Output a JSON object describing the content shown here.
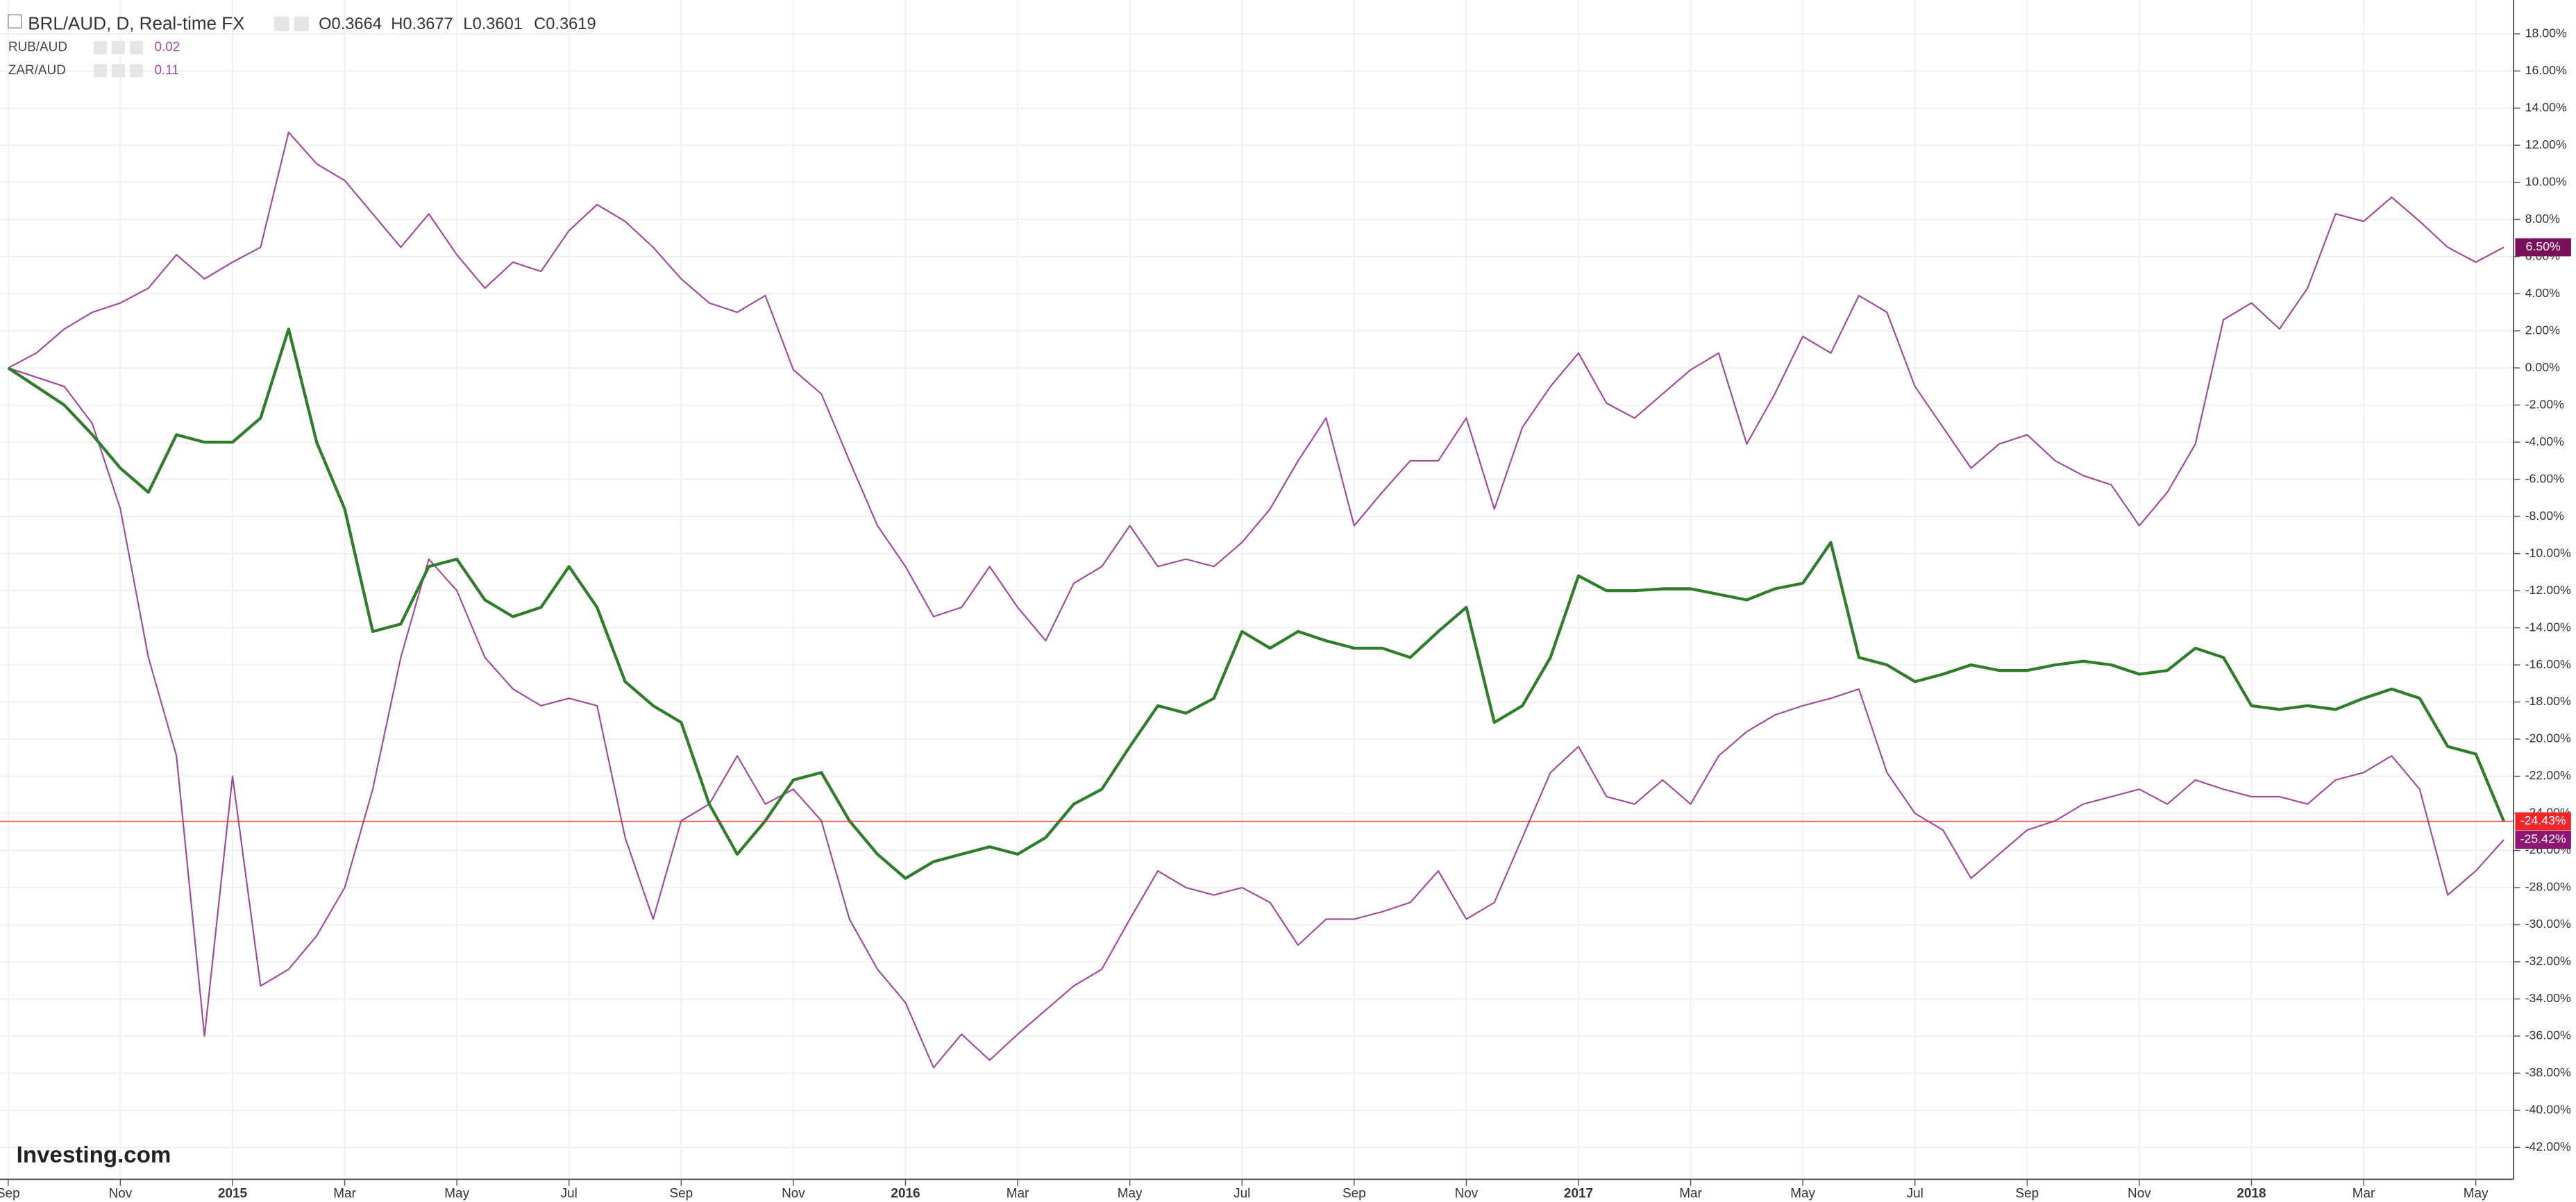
{
  "chart_data": {
    "type": "line",
    "title": "BRL/AUD, D, Real-time FX",
    "ohlc": [
      "O0.3664",
      "H0.3677",
      "L0.3601",
      "C0.3619"
    ],
    "logo": "Investing.com",
    "categories": [
      "Sep",
      null,
      null,
      null,
      "Nov",
      null,
      null,
      null,
      "2015",
      null,
      null,
      null,
      "Mar",
      null,
      null,
      null,
      "May",
      null,
      null,
      null,
      "Jul",
      null,
      null,
      null,
      "Sep",
      null,
      null,
      null,
      "Nov",
      null,
      null,
      null,
      "2016",
      null,
      null,
      null,
      "Mar",
      null,
      null,
      null,
      "May",
      null,
      null,
      null,
      "Jul",
      null,
      null,
      null,
      "Sep",
      null,
      null,
      null,
      "Nov",
      null,
      null,
      null,
      "2017",
      null,
      null,
      null,
      "Mar",
      null,
      null,
      null,
      "May",
      null,
      null,
      null,
      "Jul",
      null,
      null,
      null,
      "Sep",
      null,
      null,
      null,
      "Nov",
      null,
      null,
      null,
      "2018",
      null,
      null,
      null,
      "Mar",
      null,
      null,
      null,
      "May",
      null
    ],
    "series": [
      {
        "name": "BRL/AUD",
        "color": "#2f7d2a",
        "last_label": "-24.43%",
        "label_color": "#f0262a",
        "values": [
          0,
          -1,
          -2,
          -3.6,
          -5.4,
          -6.7,
          -3.6,
          -4,
          -4,
          -2.7,
          2.1,
          -4,
          -7.6,
          -14.2,
          -13.8,
          -10.7,
          -10.3,
          -12.5,
          -13.4,
          -12.9,
          -10.7,
          -12.9,
          -16.9,
          -18.2,
          -19.1,
          -23.5,
          -26.2,
          -24.4,
          -22.2,
          -21.8,
          -24.4,
          -26.2,
          -27.5,
          -26.6,
          -26.2,
          -25.8,
          -26.2,
          -25.3,
          -23.5,
          -22.7,
          -20.4,
          -18.2,
          -18.6,
          -17.8,
          -14.2,
          -15.1,
          -14.2,
          -14.7,
          -15.1,
          -15.1,
          -15.6,
          -14.2,
          -12.9,
          -19.1,
          -18.2,
          -15.6,
          -11.2,
          -12,
          -12,
          -11.9,
          -11.9,
          -12.2,
          -12.5,
          -11.9,
          -11.6,
          -9.4,
          -15.6,
          -16,
          -16.9,
          -16.5,
          -16,
          -16.3,
          -16.3,
          -16,
          -15.8,
          -16,
          -16.5,
          -16.3,
          -15.1,
          -15.6,
          -18.2,
          -18.4,
          -18.2,
          -18.4,
          -17.8,
          -17.3,
          -17.8,
          -20.4,
          -20.8,
          -24.43
        ]
      },
      {
        "name": "RUB/AUD",
        "color": "#a0489a",
        "legend_value": "0.02",
        "last_label": "-25.42%",
        "label_color": "#8c1670",
        "values": [
          0,
          -0.5,
          -1,
          -3,
          -7.6,
          -15.6,
          -20.9,
          -36,
          -22,
          -33.3,
          -32.4,
          -30.6,
          -28,
          -22.7,
          -15.6,
          -10.3,
          -12,
          -15.6,
          -17.3,
          -18.2,
          -17.8,
          -18.2,
          -25.3,
          -29.7,
          -24.4,
          -23.5,
          -20.9,
          -23.5,
          -22.7,
          -24.4,
          -29.7,
          -32.4,
          -34.2,
          -37.7,
          -35.9,
          -37.3,
          -35.9,
          -34.6,
          -33.3,
          -32.4,
          -29.7,
          -27.1,
          -28,
          -28.4,
          -28,
          -28.8,
          -31.1,
          -29.7,
          -29.7,
          -29.3,
          -28.8,
          -27.1,
          -29.7,
          -28.8,
          -25.3,
          -21.8,
          -20.4,
          -23.1,
          -23.5,
          -22.2,
          -23.5,
          -20.9,
          -19.6,
          -18.7,
          -18.2,
          -17.8,
          -17.3,
          -21.8,
          -24,
          -24.9,
          -27.5,
          -26.2,
          -24.9,
          -24.4,
          -23.5,
          -23.1,
          -22.7,
          -23.5,
          -22.2,
          -22.7,
          -23.1,
          -23.1,
          -23.5,
          -22.2,
          -21.8,
          -20.9,
          -22.7,
          -28.4,
          -27.1,
          -25.42
        ]
      },
      {
        "name": "ZAR/AUD",
        "color": "#a0489a",
        "legend_value": "0.11",
        "last_label": "6.50%",
        "label_color": "#7a0f5a",
        "values": [
          0,
          0.8,
          2.1,
          3,
          3.5,
          4.3,
          6.1,
          4.8,
          5.7,
          6.5,
          12.7,
          11,
          10.1,
          8.3,
          6.5,
          8.3,
          6.1,
          4.3,
          5.7,
          5.2,
          7.4,
          8.8,
          7.9,
          6.5,
          4.8,
          3.5,
          3,
          3.9,
          -0.1,
          -1.4,
          -5,
          -8.5,
          -10.7,
          -13.4,
          -12.9,
          -10.7,
          -12.9,
          -14.7,
          -11.6,
          -10.7,
          -8.5,
          -10.7,
          -10.3,
          -10.7,
          -9.4,
          -7.6,
          -5,
          -2.7,
          -8.5,
          -6.7,
          -5,
          -5,
          -2.7,
          -7.6,
          -3.2,
          -1,
          0.8,
          -1.9,
          -2.7,
          -1.4,
          -0.1,
          0.8,
          -4.1,
          -1.4,
          1.7,
          0.8,
          3.9,
          3,
          -1,
          -3.2,
          -5.4,
          -4.1,
          -3.6,
          -5,
          -5.8,
          -6.3,
          -8.5,
          -6.7,
          -4.1,
          2.6,
          3.5,
          2.1,
          4.3,
          8.3,
          7.9,
          9.2,
          7.9,
          6.5,
          5.7,
          6.5
        ]
      }
    ],
    "ylim": [
      -43.7,
      19.4
    ],
    "yticks": [
      {
        "value": -42,
        "label": "-42.00%"
      },
      {
        "value": -40,
        "label": "-40.00%"
      },
      {
        "value": -38,
        "label": "-38.00%"
      },
      {
        "value": -36,
        "label": "-36.00%"
      },
      {
        "value": -34,
        "label": "-34.00%"
      },
      {
        "value": -32,
        "label": "-32.00%"
      },
      {
        "value": -30,
        "label": "-30.00%"
      },
      {
        "value": -28,
        "label": "-28.00%"
      },
      {
        "value": -26,
        "label": "-26.00%"
      },
      {
        "value": -24,
        "label": "-24.00%"
      },
      {
        "value": -22,
        "label": "-22.00%"
      },
      {
        "value": -20,
        "label": "-20.00%"
      },
      {
        "value": -18,
        "label": "-18.00%"
      },
      {
        "value": -16,
        "label": "-16.00%"
      },
      {
        "value": -14,
        "label": "-14.00%"
      },
      {
        "value": -12,
        "label": "-12.00%"
      },
      {
        "value": -10,
        "label": "-10.00%"
      },
      {
        "value": -8,
        "label": "-8.00%"
      },
      {
        "value": -6,
        "label": "-6.00%"
      },
      {
        "value": -4,
        "label": "-4.00%"
      },
      {
        "value": -2,
        "label": "-2.00%"
      },
      {
        "value": 0,
        "label": "0.00%"
      },
      {
        "value": 2,
        "label": "2.00%"
      },
      {
        "value": 4,
        "label": "4.00%"
      },
      {
        "value": 6,
        "label": "6.00%"
      },
      {
        "value": 8,
        "label": "8.00%"
      },
      {
        "value": 10,
        "label": "10.00%"
      },
      {
        "value": 12,
        "label": "12.00%"
      },
      {
        "value": 14,
        "label": "14.00%"
      },
      {
        "value": 16,
        "label": "16.00%"
      },
      {
        "value": 18,
        "label": "18.00%"
      }
    ],
    "grid": true
  }
}
